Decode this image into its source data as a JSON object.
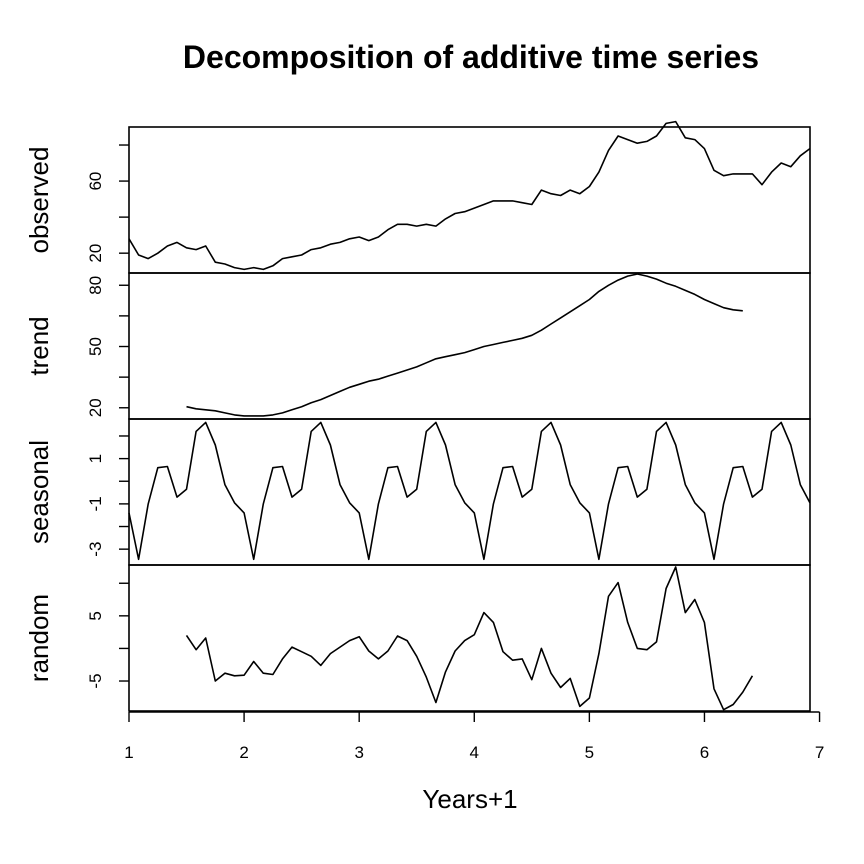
{
  "chart_data": {
    "type": "line",
    "title": "Decomposition of additive time series",
    "xlabel": "Years+1",
    "xlim": [
      1,
      6.917
    ],
    "x_ticks": [
      "1",
      "2",
      "3",
      "4",
      "5",
      "6",
      "7"
    ],
    "x_tick_values": [
      1,
      2,
      3,
      4,
      5,
      6,
      7
    ],
    "x_start": 1,
    "x_step": 0.08333,
    "panels": [
      {
        "name": "observed",
        "ylim": [
          9,
          90
        ],
        "y_ticks": [
          "20",
          "60"
        ],
        "y_tick_values": [
          20,
          60
        ],
        "values": [
          28,
          19,
          17,
          20,
          24,
          26,
          23,
          22,
          24,
          15,
          14,
          12,
          11,
          12,
          11,
          13,
          17,
          18,
          19,
          22,
          23,
          25,
          26,
          28,
          29,
          27,
          29,
          33,
          36,
          36,
          35,
          36,
          35,
          39,
          42,
          43,
          45,
          47,
          49,
          49,
          49,
          48,
          47,
          55,
          53,
          52,
          55,
          53,
          57,
          65,
          77,
          85,
          83,
          81,
          82,
          85,
          92,
          93,
          84,
          83,
          78,
          66,
          63,
          64,
          64,
          64,
          58,
          65,
          70,
          68,
          74,
          78
        ]
      },
      {
        "name": "trend",
        "ylim": [
          14.5,
          86
        ],
        "y_ticks": [
          "20",
          "50",
          "80"
        ],
        "y_tick_values": [
          20,
          50,
          80
        ],
        "values": [
          null,
          null,
          null,
          null,
          null,
          null,
          20.5,
          19.5,
          19,
          18.5,
          17.5,
          16.5,
          16,
          16,
          16,
          16.5,
          17.5,
          19,
          20.5,
          22.5,
          24,
          26,
          28,
          30,
          31.5,
          33,
          34,
          35.5,
          37,
          38.5,
          40,
          42,
          44,
          45,
          46,
          47,
          48.5,
          50,
          51,
          52,
          53,
          54,
          55.5,
          58,
          61,
          64,
          67,
          70,
          73,
          77,
          80,
          82.5,
          84.5,
          85.5,
          84.5,
          83,
          81,
          79.5,
          77.5,
          75.5,
          73,
          71,
          69,
          68,
          67.5,
          null,
          null,
          null,
          null,
          null,
          null,
          null
        ]
      },
      {
        "name": "seasonal",
        "ylim": [
          -3.7,
          2.75
        ],
        "y_ticks": [
          "-3",
          "-1",
          "1"
        ],
        "y_tick_values": [
          -3,
          -1,
          1
        ],
        "values": [
          -1.4,
          -3.45,
          -1.0,
          0.6,
          0.65,
          -0.7,
          -0.35,
          2.2,
          2.6,
          1.6,
          -0.15,
          -0.95,
          -1.4,
          -3.45,
          -1.0,
          0.6,
          0.65,
          -0.7,
          -0.35,
          2.2,
          2.6,
          1.6,
          -0.15,
          -0.95,
          -1.4,
          -3.45,
          -1.0,
          0.6,
          0.65,
          -0.7,
          -0.35,
          2.2,
          2.6,
          1.6,
          -0.15,
          -0.95,
          -1.4,
          -3.45,
          -1.0,
          0.6,
          0.65,
          -0.7,
          -0.35,
          2.2,
          2.6,
          1.6,
          -0.15,
          -0.95,
          -1.4,
          -3.45,
          -1.0,
          0.6,
          0.65,
          -0.7,
          -0.35,
          2.2,
          2.6,
          1.6,
          -0.15,
          -0.95,
          -1.4,
          -3.45,
          -1.0,
          0.6,
          0.65,
          -0.7,
          -0.35,
          2.2,
          2.6,
          1.6,
          -0.15,
          -0.95
        ]
      },
      {
        "name": "random",
        "ylim": [
          -9.6,
          12.8
        ],
        "y_ticks": [
          "-5",
          "5"
        ],
        "y_tick_values": [
          -5,
          5
        ],
        "values": [
          null,
          null,
          null,
          null,
          null,
          null,
          2.0,
          -0.2,
          1.6,
          -5.0,
          -3.8,
          -4.2,
          -4.1,
          -2.0,
          -3.8,
          -4.0,
          -1.6,
          0.2,
          -0.5,
          -1.2,
          -2.6,
          -0.8,
          0.2,
          1.2,
          1.8,
          -0.4,
          -1.6,
          -0.4,
          1.9,
          1.2,
          -1.2,
          -4.4,
          -8.3,
          -3.6,
          -0.4,
          1.2,
          2.1,
          5.5,
          4.0,
          -0.5,
          -1.8,
          -1.6,
          -4.8,
          0.0,
          -3.8,
          -6.0,
          -4.6,
          -8.9,
          -7.6,
          -0.8,
          8.0,
          10.1,
          4.0,
          0.0,
          -0.2,
          1.0,
          9.2,
          12.5,
          5.5,
          7.5,
          4.0,
          -6.2,
          -9.4,
          -8.6,
          -6.7,
          -4.2,
          null,
          null,
          null,
          null,
          null,
          null
        ]
      }
    ]
  }
}
